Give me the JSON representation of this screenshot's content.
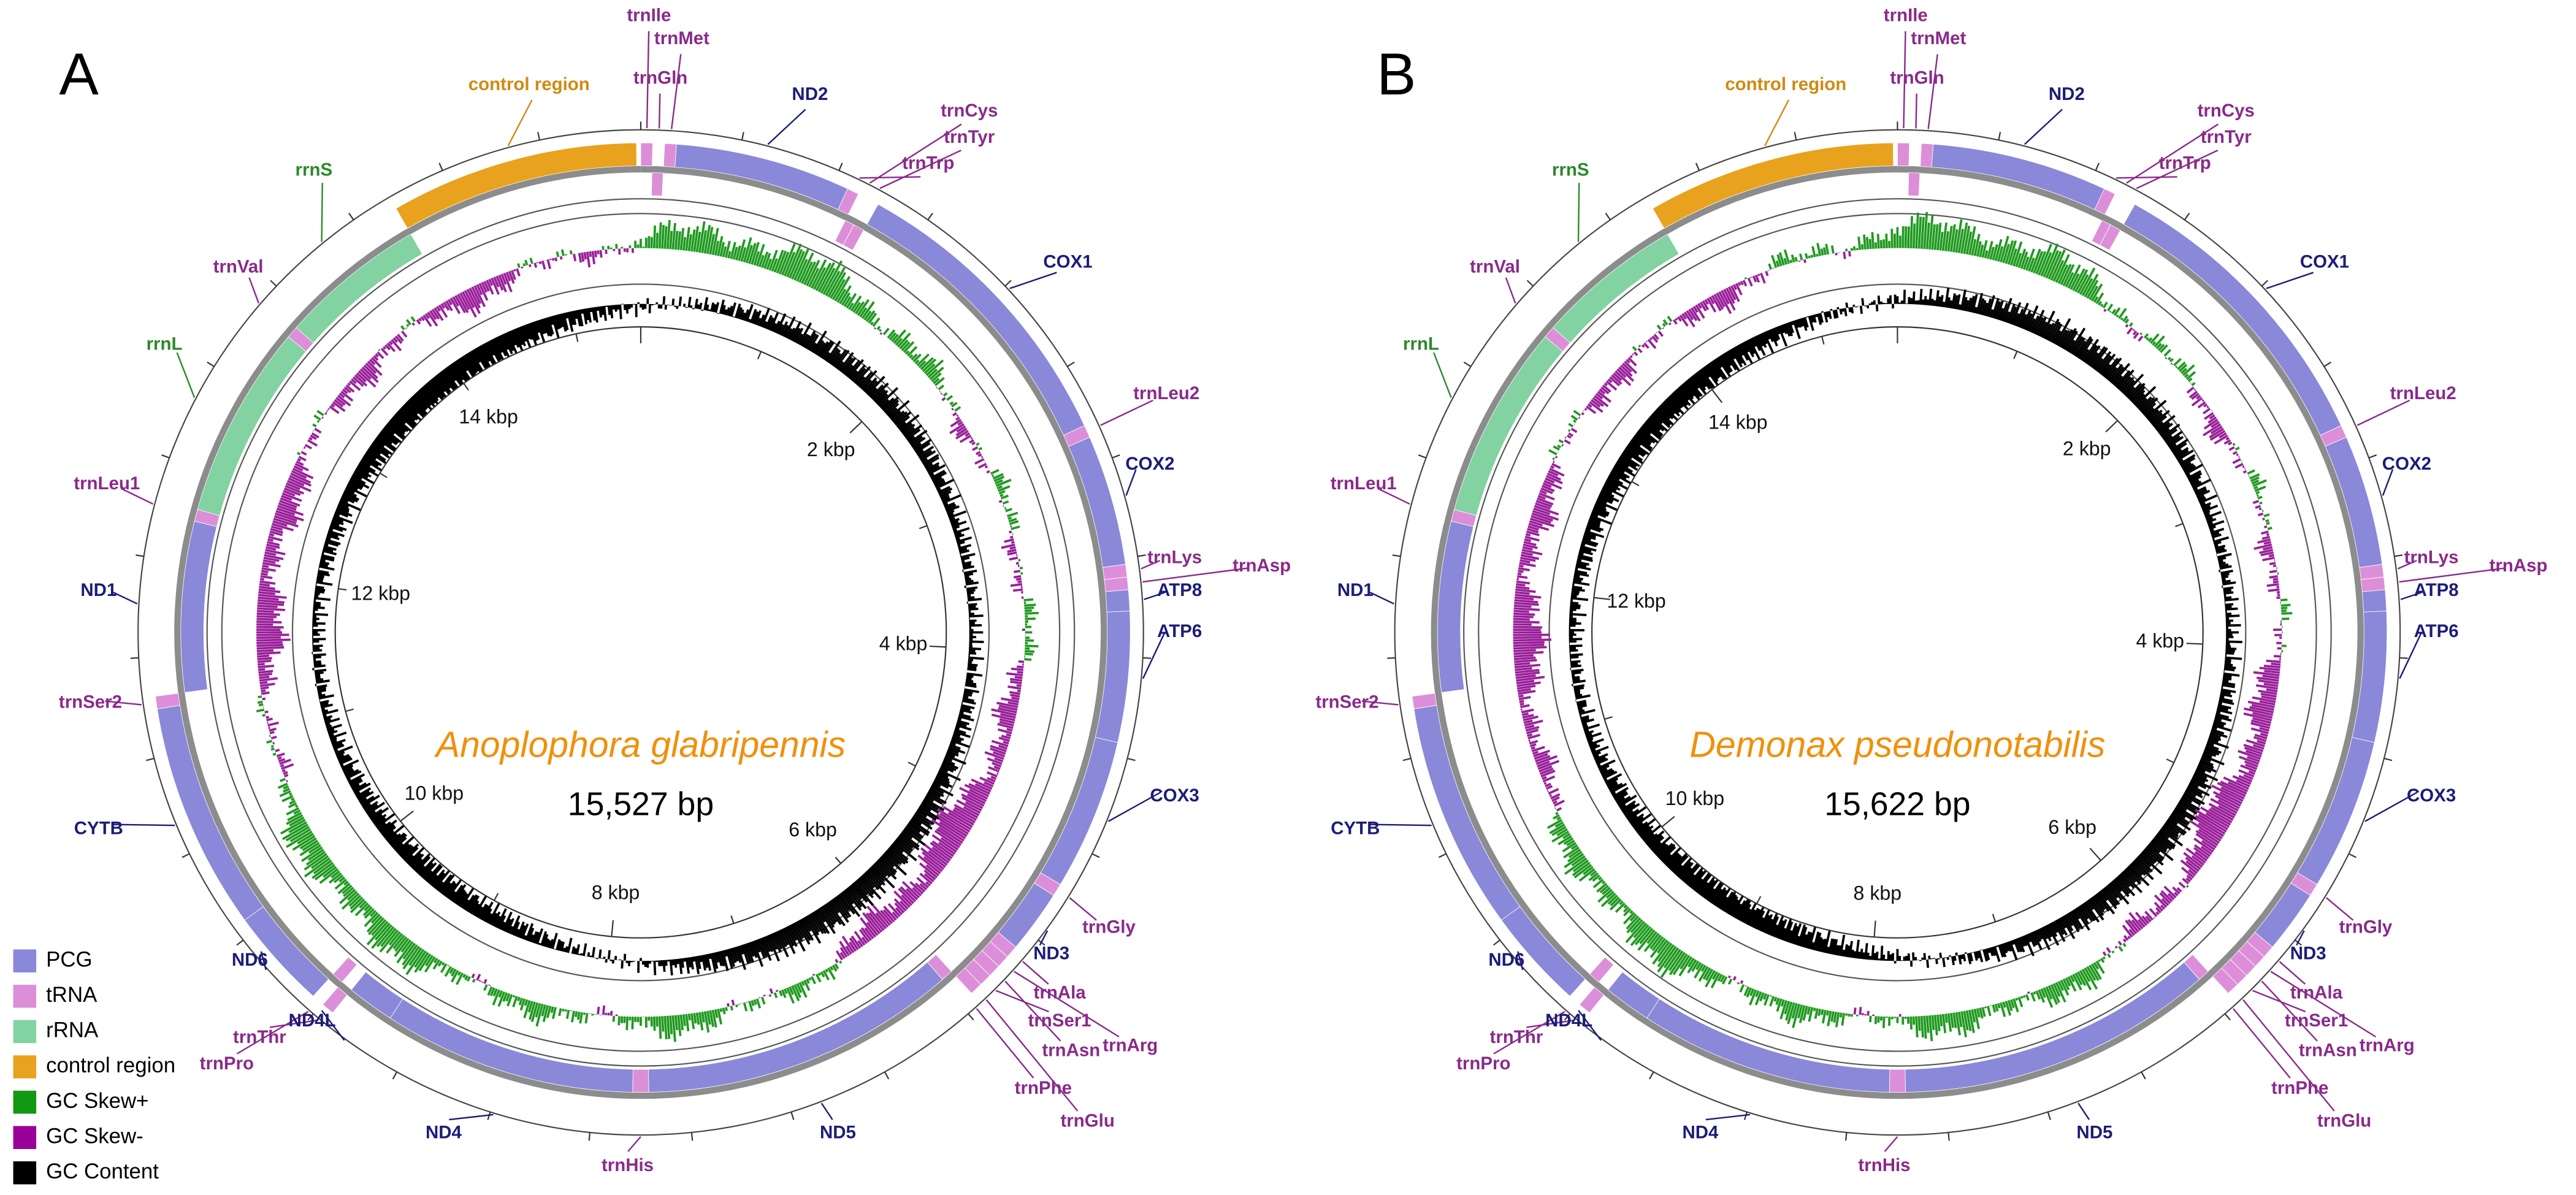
{
  "panels": [
    {
      "letter": "A",
      "species": "Anoplophora glabripennis",
      "length": "15,527 bp",
      "scale_labels": [
        "2 kbp",
        "4 kbp",
        "6 kbp",
        "8 kbp",
        "10 kbp",
        "12 kbp",
        "14 kbp"
      ],
      "genes": [
        "trnIle",
        "trnMet",
        "trnGln",
        "control region",
        "ND2",
        "trnCys",
        "trnTyr",
        "trnTrp",
        "rrnS",
        "trnVal",
        "COX1",
        "rrnL",
        "trnLeu2",
        "trnLeu1",
        "COX2",
        "trnLys",
        "trnAsp",
        "ATP8",
        "ND1",
        "ATP6",
        "trnSer2",
        "CYTB",
        "COX3",
        "trnGly",
        "ND3",
        "ND6",
        "trnAla",
        "trnSer1",
        "trnThr",
        "trnPro",
        "ND4L",
        "trnAsn",
        "trnArg",
        "trnPhe",
        "trnGlu",
        "ND4",
        "ND5",
        "trnHis"
      ]
    },
    {
      "letter": "B",
      "species": "Demonax pseudonotabilis",
      "length": "15,622 bp",
      "scale_labels": [
        "2 kbp",
        "4 kbp",
        "6 kbp",
        "8 kbp",
        "10 kbp",
        "12 kbp",
        "14 kbp"
      ],
      "genes": [
        "trnIle",
        "trnMet",
        "trnGln",
        "control region",
        "ND2",
        "trnCys",
        "trnTyr",
        "trnTrp",
        "rrnS",
        "trnVal",
        "COX1",
        "rrnL",
        "trnLeu2",
        "trnLeu1",
        "COX2",
        "trnLys",
        "trnAsp",
        "ATP8",
        "ND1",
        "ATP6",
        "trnSer2",
        "CYTB",
        "COX3",
        "trnGly",
        "ND3",
        "ND6",
        "trnAla",
        "trnSer1",
        "trnThr",
        "trnPro",
        "ND4L",
        "trnAsn",
        "trnArg",
        "trnPhe",
        "trnGlu",
        "ND4",
        "ND5",
        "trnHis"
      ]
    }
  ],
  "legend": [
    "PCG",
    "tRNA",
    "rRNA",
    "control region",
    "GC Skew+",
    "GC Skew-",
    "GC Content"
  ]
}
